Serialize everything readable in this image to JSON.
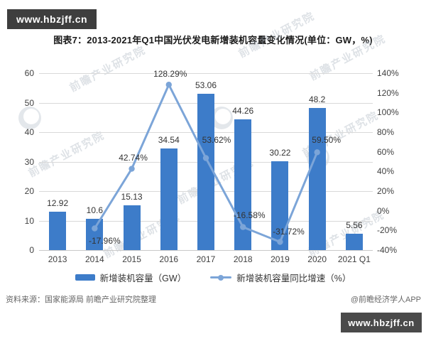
{
  "banner": {
    "text": "www.hbzjff.cn"
  },
  "title": "图表7：2013-2021年Q1中国光伏发电新增装机容量变化情况(单位：GW，%)",
  "chart_data": {
    "type": "bar",
    "categories": [
      "2013",
      "2014",
      "2015",
      "2016",
      "2017",
      "2018",
      "2019",
      "2020",
      "2021 Q1"
    ],
    "series": [
      {
        "name": "新增装机容量（GW）",
        "type": "bar",
        "axis": "left",
        "color": "#3d7cc9",
        "values": [
          12.92,
          10.6,
          15.13,
          34.54,
          53.06,
          44.26,
          30.22,
          48.2,
          5.56
        ],
        "labels": [
          "12.92",
          "10.6",
          "15.13",
          "34.54",
          "53.06",
          "44.26",
          "30.22",
          "48.2",
          "5.56"
        ]
      },
      {
        "name": "新增装机容量同比增速（%）",
        "type": "line",
        "axis": "right",
        "color": "#7ca5d8",
        "values": [
          null,
          -17.96,
          42.74,
          128.29,
          53.62,
          -16.58,
          -31.72,
          59.5,
          null
        ],
        "labels": [
          null,
          "-17.96%",
          "42.74%",
          "128.29%",
          "53.62%",
          "-16.58%",
          "-31.72%",
          "59.50%",
          null
        ]
      }
    ],
    "left_axis": {
      "min": 0,
      "max": 60,
      "step": 10,
      "ticks": [
        "0",
        "10",
        "20",
        "30",
        "40",
        "50",
        "60"
      ]
    },
    "right_axis": {
      "min": -40,
      "max": 140,
      "step": 20,
      "ticks": [
        "-40%",
        "-20%",
        "0%",
        "20%",
        "40%",
        "60%",
        "80%",
        "100%",
        "120%",
        "140%"
      ]
    },
    "grid": true,
    "legend_position": "bottom"
  },
  "source": "资料来源：国家能源局 前瞻产业研究院整理",
  "attribution": "@前瞻经济学人APP",
  "watermark": "前瞻产业研究院"
}
